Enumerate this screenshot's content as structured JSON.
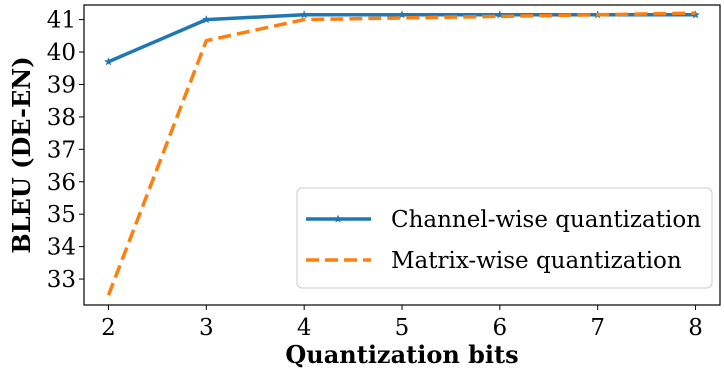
{
  "chart_data": {
    "type": "line",
    "xlabel": "Quantization bits",
    "ylabel": "BLEU (DE-EN)",
    "x": [
      2,
      3,
      4,
      5,
      6,
      7,
      8
    ],
    "xlim": [
      1.75,
      8.25
    ],
    "ylim": [
      32.2,
      41.45
    ],
    "xticks": [
      "2",
      "3",
      "4",
      "5",
      "6",
      "7",
      "8"
    ],
    "yticks": [
      "33",
      "34",
      "35",
      "36",
      "37",
      "38",
      "39",
      "40",
      "41"
    ],
    "grid": false,
    "legend_position": "lower-right",
    "series": [
      {
        "name": "Channel-wise quantization",
        "values": [
          39.7,
          41.0,
          41.15,
          41.15,
          41.15,
          41.15,
          41.15
        ],
        "color": "#1f77b4",
        "linestyle": "solid",
        "marker": "star"
      },
      {
        "name": "Matrix-wise quantization",
        "values": [
          32.5,
          40.35,
          41.0,
          41.05,
          41.1,
          41.15,
          41.2
        ],
        "color": "#ff7f0e",
        "linestyle": "dashed",
        "marker": "none"
      }
    ]
  }
}
